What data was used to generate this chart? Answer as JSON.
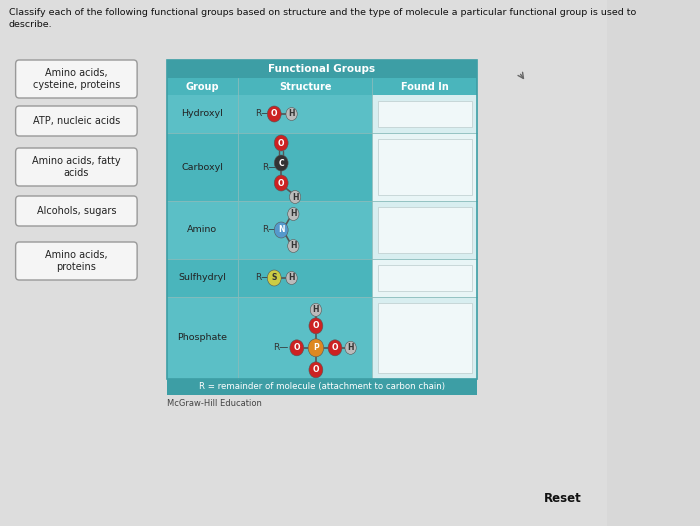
{
  "title_text": "Classify each of the following functional groups based on structure and the type of molecule a particular functional group is used to\ndescribe.",
  "table_title": "Functional Groups",
  "table_header": [
    "Group",
    "Structure",
    "Found In"
  ],
  "rows": [
    "Hydroxyl",
    "Carboxyl",
    "Amino",
    "Sulfhydryl",
    "Phosphate"
  ],
  "footer_text": "R = remainder of molecule (attachment to carbon chain)",
  "credit_text": "McGraw-Hill Education",
  "reset_text": "Reset",
  "drag_labels": [
    "Amino acids,\ncysteine, proteins",
    "ATP, nucleic acids",
    "Amino acids, fatty\nacids",
    "Alcohols, sugars",
    "Amino acids,\nproteins"
  ],
  "teal_header_color": "#3d9ea5",
  "teal_row_color": "#4ab5bc",
  "teal_mid_color": "#5bbfc6",
  "light_row_color": "#c5e8ea",
  "dark_row_color": "#a8d8db",
  "found_in_light": "#d8eef0",
  "found_in_dark": "#c5e5e8",
  "drag_box_bg": "#f0f0f0",
  "drag_box_border": "#aaaaaa",
  "bg_color": "#d8d8d8",
  "text_dark": "#222222",
  "text_white": "#ffffff",
  "atom_red": "#cc2222",
  "atom_dark": "#222222",
  "atom_dark_green": "#2a5a5a",
  "atom_blue_gray": "#6688aa",
  "atom_teal": "#4488aa",
  "atom_yellow": "#ddcc44",
  "atom_orange": "#dd8822",
  "atom_white_gray": "#cccccc"
}
